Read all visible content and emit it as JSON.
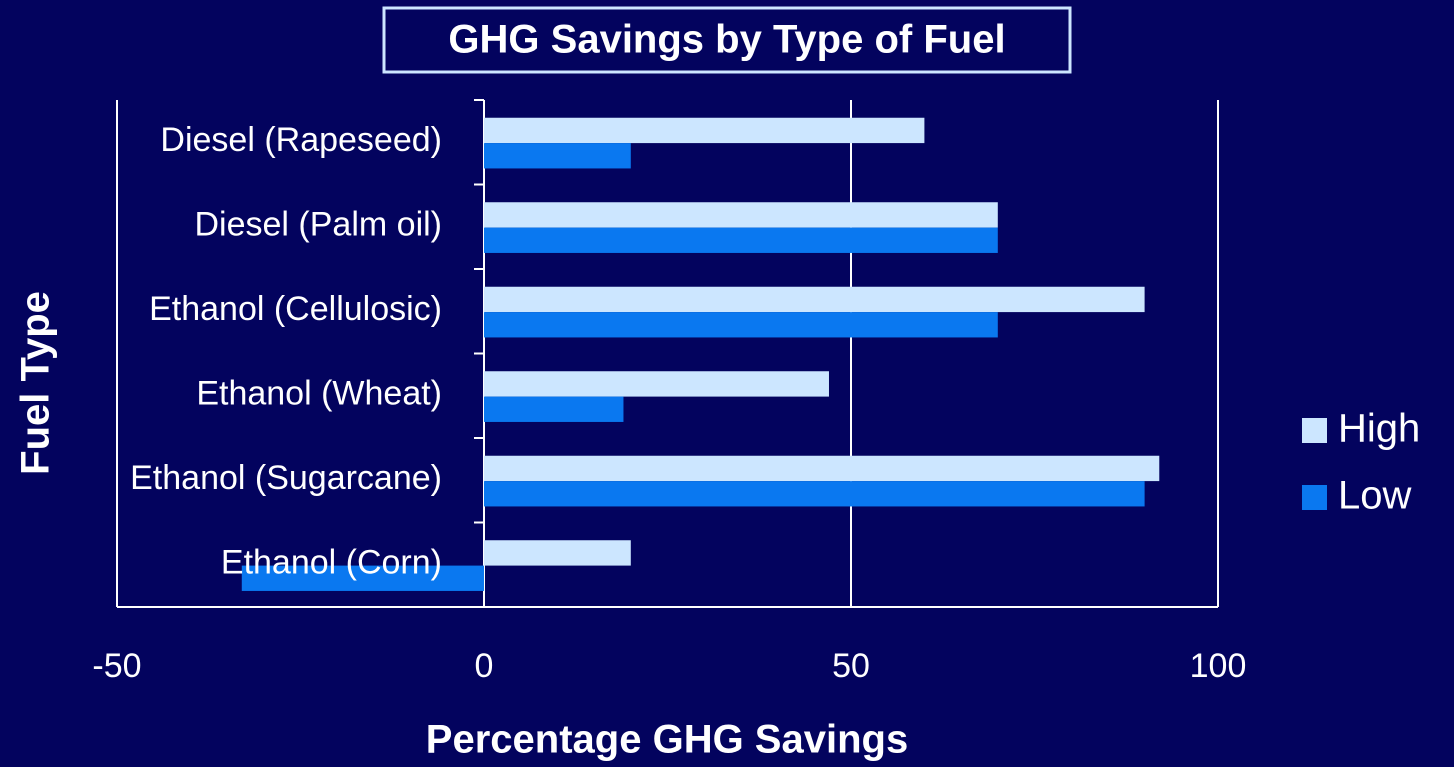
{
  "chart_data": {
    "type": "bar",
    "orientation": "horizontal",
    "title": "GHG Savings by Type of Fuel",
    "x_label": "Percentage  GHG Savings",
    "y_label": "Fuel Type",
    "categories": [
      "Diesel (Rapeseed)",
      "Diesel (Palm oil)",
      "Ethanol (Cellulosic)",
      "Ethanol (Wheat)",
      "Ethanol (Sugarcane)",
      "Ethanol (Corn)"
    ],
    "series": [
      {
        "name": "High",
        "color": "#cce6ff",
        "values": [
          60,
          70,
          90,
          47,
          92,
          20
        ]
      },
      {
        "name": "Low",
        "color": "#0a78f0",
        "values": [
          20,
          70,
          70,
          19,
          90,
          -33
        ]
      }
    ],
    "xlim": [
      -50,
      100
    ],
    "xticks": [
      -50,
      0,
      50,
      100
    ],
    "grid": true,
    "legend": "right"
  }
}
